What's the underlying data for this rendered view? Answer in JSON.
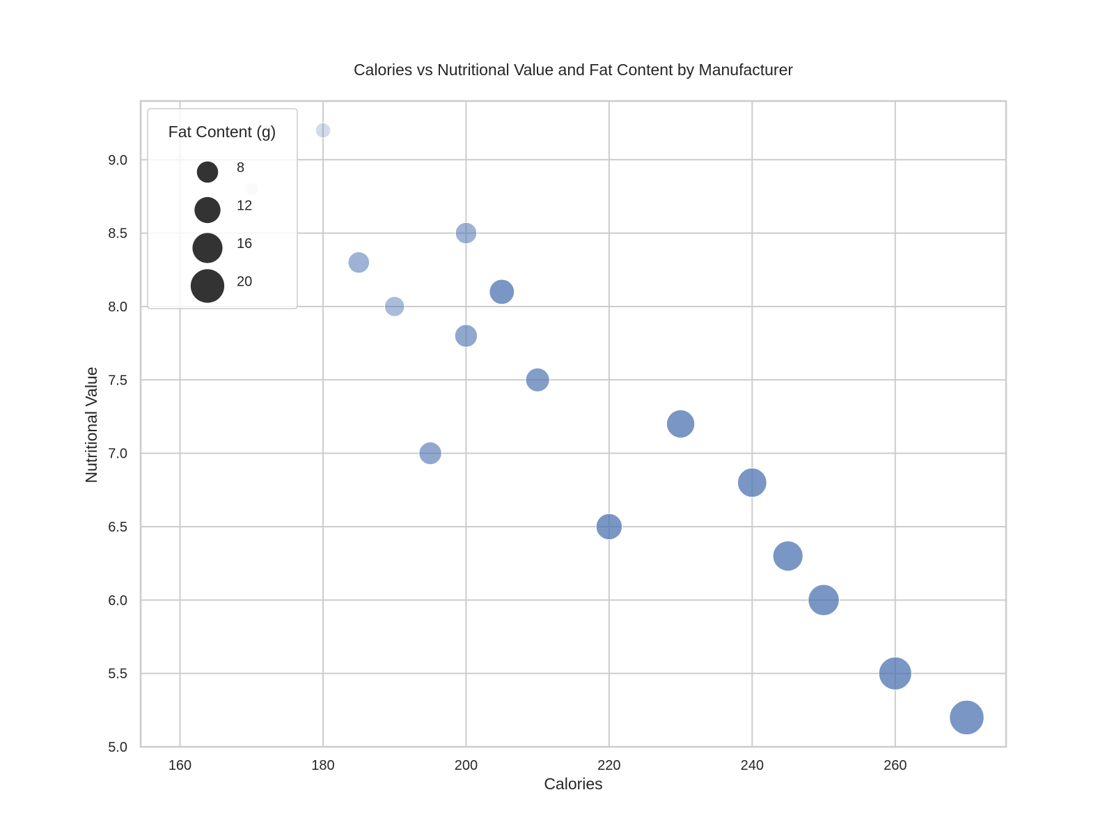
{
  "chart_data": {
    "type": "scatter",
    "title": "Calories vs Nutritional Value and Fat Content by Manufacturer",
    "xlabel": "Calories",
    "ylabel": "Nutritional Value",
    "xlim": [
      154.5,
      275.5
    ],
    "ylim": [
      5.0,
      9.4
    ],
    "x_ticks": [
      160,
      180,
      200,
      220,
      240,
      260
    ],
    "y_ticks": [
      5.0,
      5.5,
      6.0,
      6.5,
      7.0,
      7.5,
      8.0,
      8.5,
      9.0
    ],
    "x_tick_labels": [
      "160",
      "180",
      "200",
      "220",
      "240",
      "260"
    ],
    "y_tick_labels": [
      "5.0",
      "5.5",
      "6.0",
      "6.5",
      "7.0",
      "7.5",
      "8.0",
      "8.5",
      "9.0"
    ],
    "grid": true,
    "size_variable": "Fat Content (g)",
    "legend": {
      "title": "Fat Content (g)",
      "placement": "upper-left",
      "sizes": [
        8,
        12,
        16,
        20
      ],
      "labels": [
        "8",
        "12",
        "16",
        "20"
      ]
    },
    "point_color": "#4c72b0",
    "points": [
      {
        "x": 160,
        "y": 9.0,
        "size": 2
      },
      {
        "x": 170,
        "y": 8.8,
        "size": 3
      },
      {
        "x": 180,
        "y": 9.2,
        "size": 4
      },
      {
        "x": 185,
        "y": 8.3,
        "size": 8
      },
      {
        "x": 190,
        "y": 8.0,
        "size": 7
      },
      {
        "x": 195,
        "y": 7.0,
        "size": 9
      },
      {
        "x": 200,
        "y": 8.5,
        "size": 8
      },
      {
        "x": 200,
        "y": 7.8,
        "size": 9
      },
      {
        "x": 205,
        "y": 8.1,
        "size": 11
      },
      {
        "x": 210,
        "y": 7.5,
        "size": 10
      },
      {
        "x": 220,
        "y": 6.5,
        "size": 12
      },
      {
        "x": 230,
        "y": 7.2,
        "size": 14
      },
      {
        "x": 240,
        "y": 6.8,
        "size": 15
      },
      {
        "x": 245,
        "y": 6.3,
        "size": 16
      },
      {
        "x": 250,
        "y": 6.0,
        "size": 17
      },
      {
        "x": 260,
        "y": 5.5,
        "size": 19
      },
      {
        "x": 270,
        "y": 5.2,
        "size": 21
      }
    ]
  }
}
